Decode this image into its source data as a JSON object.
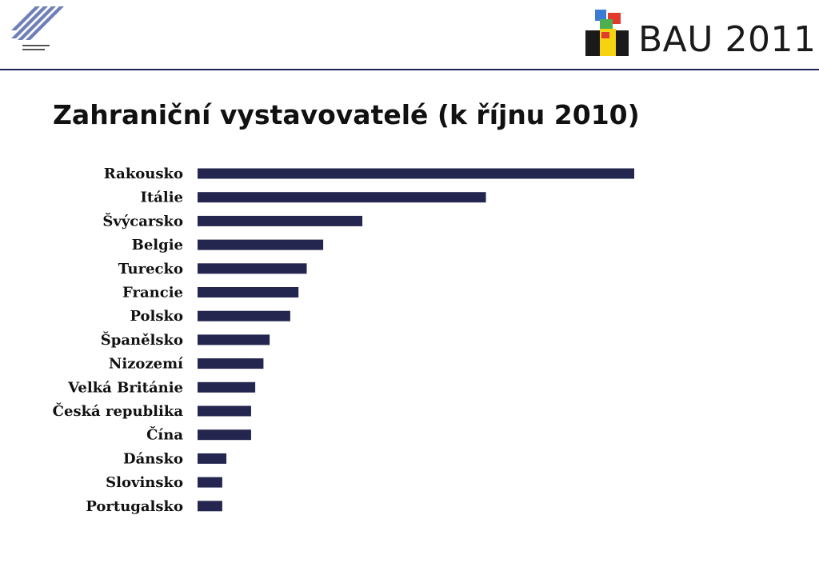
{
  "header": {
    "brand_name": "BAU 2011",
    "mm_logo_icon": "messe-muenchen-logo-icon",
    "bau_logo_icon": "bau-cube-logo-icon"
  },
  "chart_data": {
    "type": "bar",
    "orientation": "horizontal",
    "title": "Zahraniční vystavovatelé (k říjnu 2010)",
    "categories": [
      "Rakousko",
      "Itálie",
      "Švýcarsko",
      "Belgie",
      "Turecko",
      "Francie",
      "Polsko",
      "Španělsko",
      "Nizozemí",
      "Velká Británie",
      "Česká republika",
      "Čína",
      "Dánsko",
      "Slovinsko",
      "Portugalsko"
    ],
    "values": [
      212,
      140,
      80,
      61,
      53,
      49,
      45,
      35,
      32,
      28,
      26,
      26,
      14,
      12,
      12
    ],
    "xlim": [
      0,
      212
    ],
    "grid": false,
    "legend": "none",
    "bar_color": "#24264f"
  }
}
